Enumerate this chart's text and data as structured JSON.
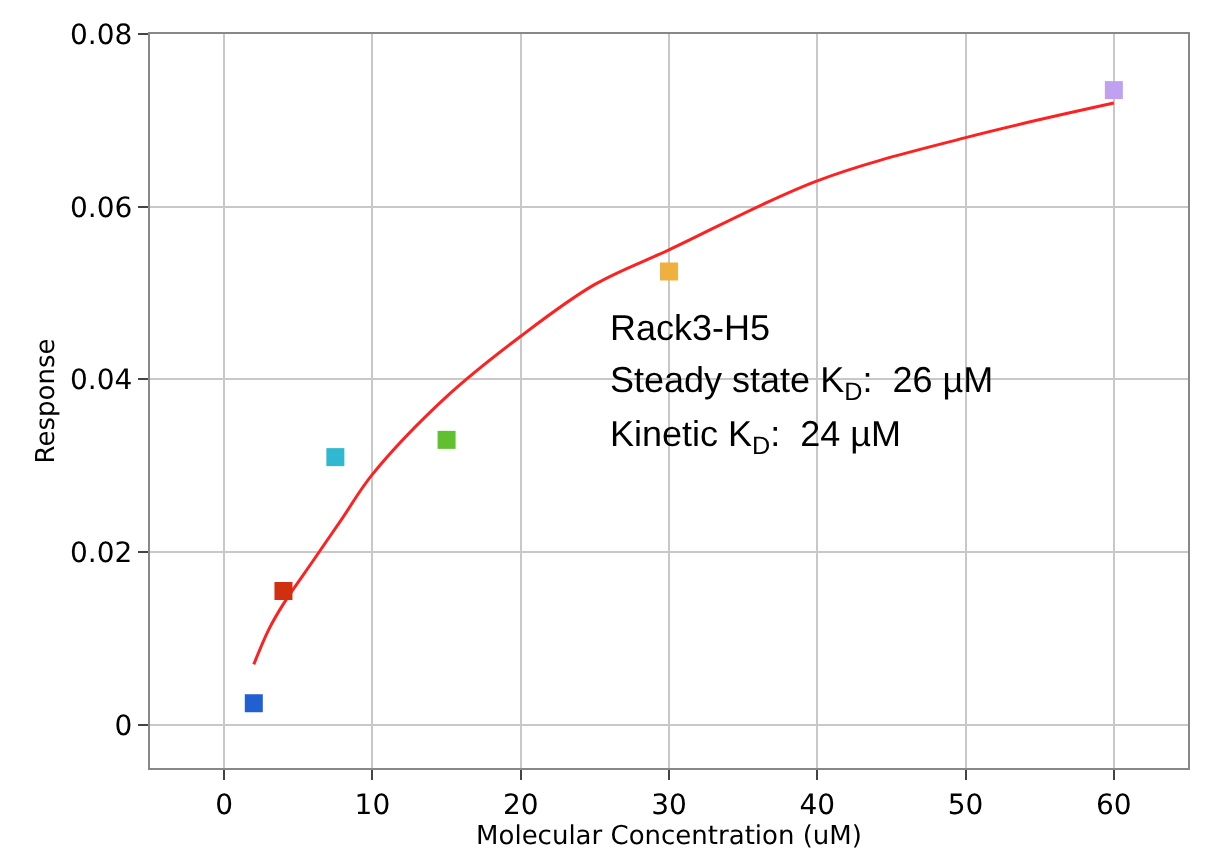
{
  "chart_data": {
    "type": "scatter",
    "xlabel": "Molecular Concentration (uM)",
    "ylabel": "Response",
    "xlim": [
      -5,
      65
    ],
    "xticks": [
      0,
      10,
      20,
      30,
      40,
      50,
      60
    ],
    "ylim": [
      -0.005,
      0.08
    ],
    "yticks": [
      0,
      0.02,
      0.04,
      0.06,
      0.08
    ],
    "grid": true,
    "series": [
      {
        "type": "line",
        "color": "#ff2020",
        "x": [
          2,
          3,
          4,
          6,
          8,
          10,
          15,
          20,
          25,
          30,
          40,
          50,
          60
        ],
        "values": [
          0.007,
          0.011,
          0.014,
          0.019,
          0.024,
          0.029,
          0.038,
          0.045,
          0.051,
          0.055,
          0.063,
          0.068,
          0.072
        ]
      },
      {
        "marker": "square",
        "x": [
          2,
          4,
          7.5,
          15,
          30,
          60
        ],
        "values": [
          0.0025,
          0.0155,
          0.031,
          0.033,
          0.0525,
          0.0735
        ],
        "colors": [
          "#2060d0",
          "#d03010",
          "#30b8d0",
          "#60c030",
          "#f0b040",
          "#c0a0f0"
        ]
      }
    ],
    "annotations": [
      "Rack3-H5",
      "Steady state K$_{D}$:  26 µM",
      "Kinetic K$_{D}$:  24 µM"
    ]
  }
}
